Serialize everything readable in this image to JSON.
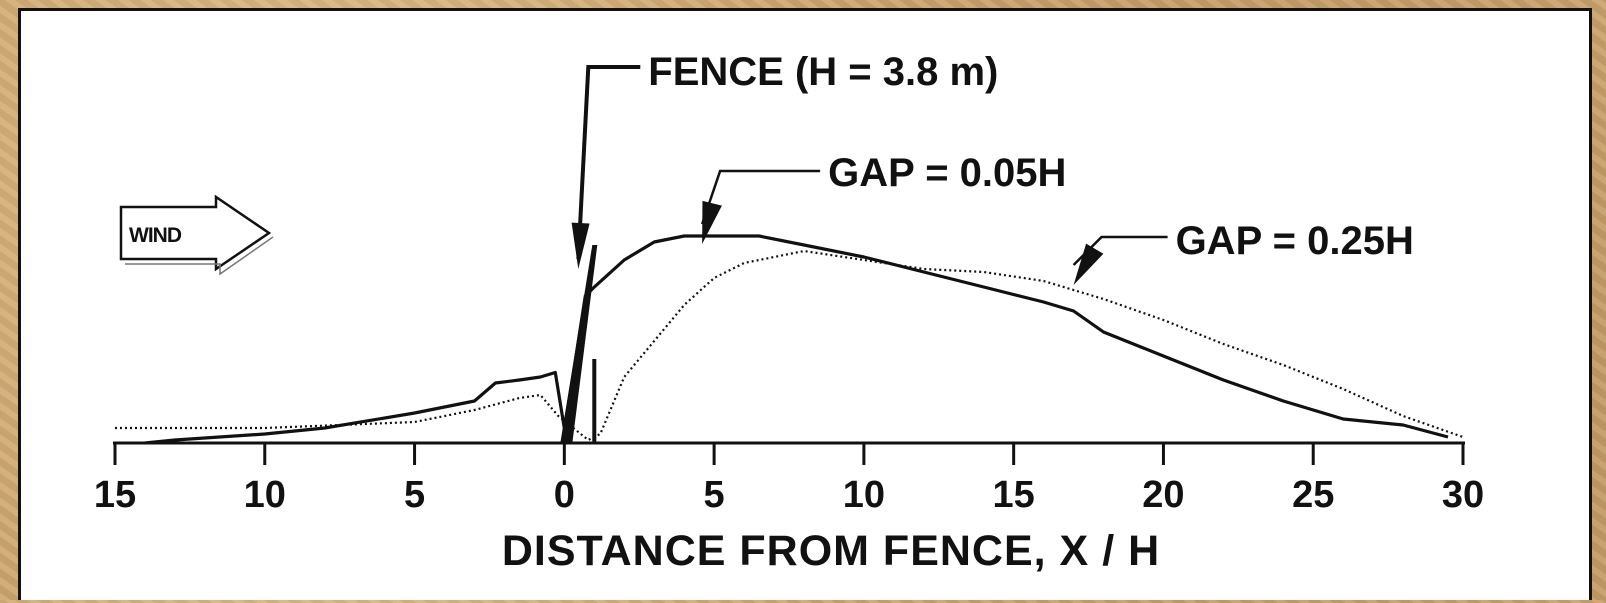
{
  "chart_data": {
    "type": "line",
    "title": "",
    "xlabel": "DISTANCE FROM FENCE, X / H",
    "ylabel": "",
    "xlim": [
      -15,
      30
    ],
    "x_ticks": [
      -15,
      -10,
      -5,
      0,
      5,
      10,
      15,
      20,
      25,
      30
    ],
    "x_tick_labels": [
      "15",
      "10",
      "5",
      "0",
      "5",
      "10",
      "15",
      "20",
      "25",
      "30"
    ],
    "grid": false,
    "legend": "none",
    "colors": {
      "line": "#111111",
      "frame": "#111111"
    },
    "series": [
      {
        "name": "GAP = 0.05H",
        "style": "solid",
        "points": [
          [
            -14,
            0
          ],
          [
            -13,
            0.01
          ],
          [
            -10,
            0.03
          ],
          [
            -8,
            0.05
          ],
          [
            -5,
            0.1
          ],
          [
            -3,
            0.14
          ],
          [
            -2.3,
            0.2
          ],
          [
            -1.5,
            0.21
          ],
          [
            -0.8,
            0.22
          ],
          [
            -0.3,
            0.235
          ],
          [
            0,
            0.05
          ],
          [
            0.3,
            0.23
          ],
          [
            0.7,
            0.49
          ],
          [
            1,
            0.52
          ],
          [
            2,
            0.61
          ],
          [
            3,
            0.67
          ],
          [
            4,
            0.69
          ],
          [
            5,
            0.69
          ],
          [
            6.5,
            0.69
          ],
          [
            8,
            0.66
          ],
          [
            10,
            0.62
          ],
          [
            12,
            0.57
          ],
          [
            14,
            0.52
          ],
          [
            16,
            0.47
          ],
          [
            17,
            0.44
          ],
          [
            18,
            0.37
          ],
          [
            20,
            0.29
          ],
          [
            22,
            0.21
          ],
          [
            24,
            0.14
          ],
          [
            26,
            0.08
          ],
          [
            28,
            0.06
          ],
          [
            29.5,
            0.02
          ]
        ]
      },
      {
        "name": "GAP = 0.25H",
        "style": "dotted",
        "points": [
          [
            -15,
            0.05
          ],
          [
            -10,
            0.05
          ],
          [
            -5,
            0.07
          ],
          [
            -3,
            0.11
          ],
          [
            -1.5,
            0.15
          ],
          [
            -0.8,
            0.16
          ],
          [
            -0.2,
            0.09
          ],
          [
            0.3,
            0.05
          ],
          [
            0.8,
            0.01
          ],
          [
            1.2,
            0.03
          ],
          [
            2,
            0.22
          ],
          [
            3,
            0.34
          ],
          [
            4,
            0.46
          ],
          [
            5,
            0.55
          ],
          [
            6,
            0.6
          ],
          [
            8,
            0.64
          ],
          [
            10,
            0.61
          ],
          [
            12,
            0.58
          ],
          [
            14,
            0.57
          ],
          [
            16,
            0.54
          ],
          [
            18,
            0.48
          ],
          [
            20,
            0.41
          ],
          [
            22,
            0.33
          ],
          [
            24,
            0.26
          ],
          [
            26,
            0.18
          ],
          [
            28,
            0.09
          ],
          [
            30,
            0.02
          ]
        ]
      }
    ],
    "annotations": [
      {
        "name": "fence",
        "text": "FENCE (H = 3.8 m)",
        "x": 0.6,
        "y": 0.58
      },
      {
        "name": "gap-005",
        "text": "GAP = 0.05H",
        "x": 4.6,
        "y": 0.67
      },
      {
        "name": "gap-025",
        "text": "GAP = 0.25H",
        "x": 17,
        "y": 0.54
      }
    ],
    "wind_label": "WIND"
  }
}
